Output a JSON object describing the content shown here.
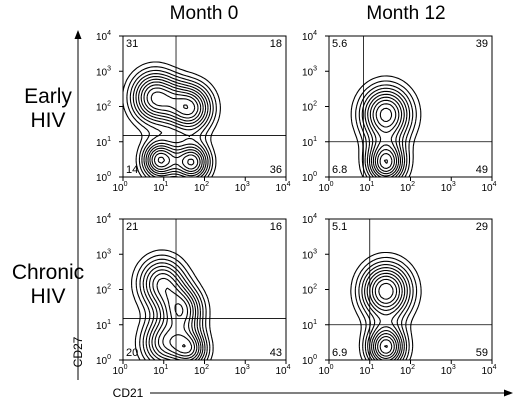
{
  "columns": [
    "Month 0",
    "Month 12"
  ],
  "rows": [
    {
      "line1": "Early",
      "line2": "HIV"
    },
    {
      "line1": "Chronic",
      "line2": "HIV"
    }
  ],
  "axes": {
    "x_label": "CD21",
    "y_label": "CD27",
    "scale": "log",
    "range": [
      1,
      10000
    ],
    "tick_labels": [
      {
        "base": "10",
        "exp": "0"
      },
      {
        "base": "10",
        "exp": "1"
      },
      {
        "base": "10",
        "exp": "2"
      },
      {
        "base": "10",
        "exp": "3"
      },
      {
        "base": "10",
        "exp": "4"
      }
    ]
  },
  "chart_data": [
    {
      "type": "contour",
      "row": "Early HIV",
      "column": "Month 0",
      "quadrants": {
        "upper_left": "31",
        "upper_right": "18",
        "lower_left": "14",
        "lower_right": "36"
      },
      "gate": {
        "x": 20,
        "y": 15
      },
      "populations": [
        {
          "x": 6,
          "y": 180,
          "spread": 0.75
        },
        {
          "x": 50,
          "y": 2.6,
          "spread": 0.55
        },
        {
          "x": 8,
          "y": 3,
          "spread": 0.55
        },
        {
          "x": 45,
          "y": 90,
          "spread": 0.7
        }
      ]
    },
    {
      "type": "contour",
      "row": "Early HIV",
      "column": "Month 12",
      "quadrants": {
        "upper_left": "5.6",
        "upper_right": "39",
        "lower_left": "6.8",
        "lower_right": "49"
      },
      "gate": {
        "x": 7,
        "y": 10
      },
      "populations": [
        {
          "x": 25,
          "y": 60,
          "spread": 0.8
        },
        {
          "x": 25,
          "y": 2.5,
          "spread": 0.6
        }
      ]
    },
    {
      "type": "contour",
      "row": "Chronic HIV",
      "column": "Month 0",
      "quadrants": {
        "upper_left": "21",
        "upper_right": "16",
        "lower_left": "20",
        "lower_right": "43"
      },
      "gate": {
        "x": 20,
        "y": 15
      },
      "populations": [
        {
          "x": 9,
          "y": 150,
          "spread": 0.75
        },
        {
          "x": 45,
          "y": 2,
          "spread": 0.55
        },
        {
          "x": 10,
          "y": 3,
          "spread": 0.7
        },
        {
          "x": 30,
          "y": 25,
          "spread": 0.65
        }
      ]
    },
    {
      "type": "contour",
      "row": "Chronic HIV",
      "column": "Month 12",
      "quadrants": {
        "upper_left": "5.1",
        "upper_right": "29",
        "lower_left": "6.9",
        "lower_right": "59"
      },
      "gate": {
        "x": 10,
        "y": 10
      },
      "populations": [
        {
          "x": 25,
          "y": 90,
          "spread": 0.8
        },
        {
          "x": 25,
          "y": 2.3,
          "spread": 0.6
        }
      ]
    }
  ]
}
